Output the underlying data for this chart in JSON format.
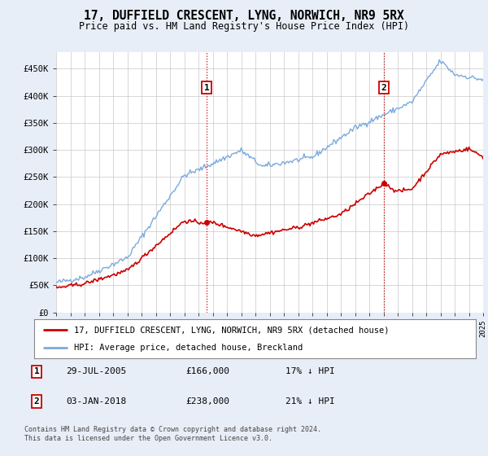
{
  "title": "17, DUFFIELD CRESCENT, LYNG, NORWICH, NR9 5RX",
  "subtitle": "Price paid vs. HM Land Registry's House Price Index (HPI)",
  "legend_line1": "17, DUFFIELD CRESCENT, LYNG, NORWICH, NR9 5RX (detached house)",
  "legend_line2": "HPI: Average price, detached house, Breckland",
  "annotation1_label": "1",
  "annotation1_date": "29-JUL-2005",
  "annotation1_price": "£166,000",
  "annotation1_hpi": "17% ↓ HPI",
  "annotation2_label": "2",
  "annotation2_date": "03-JAN-2018",
  "annotation2_price": "£238,000",
  "annotation2_hpi": "21% ↓ HPI",
  "footnote": "Contains HM Land Registry data © Crown copyright and database right 2024.\nThis data is licensed under the Open Government Licence v3.0.",
  "red_line_color": "#cc0000",
  "blue_line_color": "#7aaadd",
  "background_color": "#e8eef8",
  "plot_bg_color": "#ffffff",
  "grid_color": "#c8c8c8",
  "vline_color": "#cc0000",
  "box_color": "#cc0000",
  "ylim": [
    0,
    480000
  ],
  "yticks": [
    0,
    50000,
    100000,
    150000,
    200000,
    250000,
    300000,
    350000,
    400000,
    450000
  ],
  "ytick_labels": [
    "£0",
    "£50K",
    "£100K",
    "£150K",
    "£200K",
    "£250K",
    "£300K",
    "£350K",
    "£400K",
    "£450K"
  ],
  "year_start": 1995,
  "year_end": 2025,
  "sale1_year": 2005.57,
  "sale1_price": 166000,
  "sale2_year": 2018.01,
  "sale2_price": 238000
}
